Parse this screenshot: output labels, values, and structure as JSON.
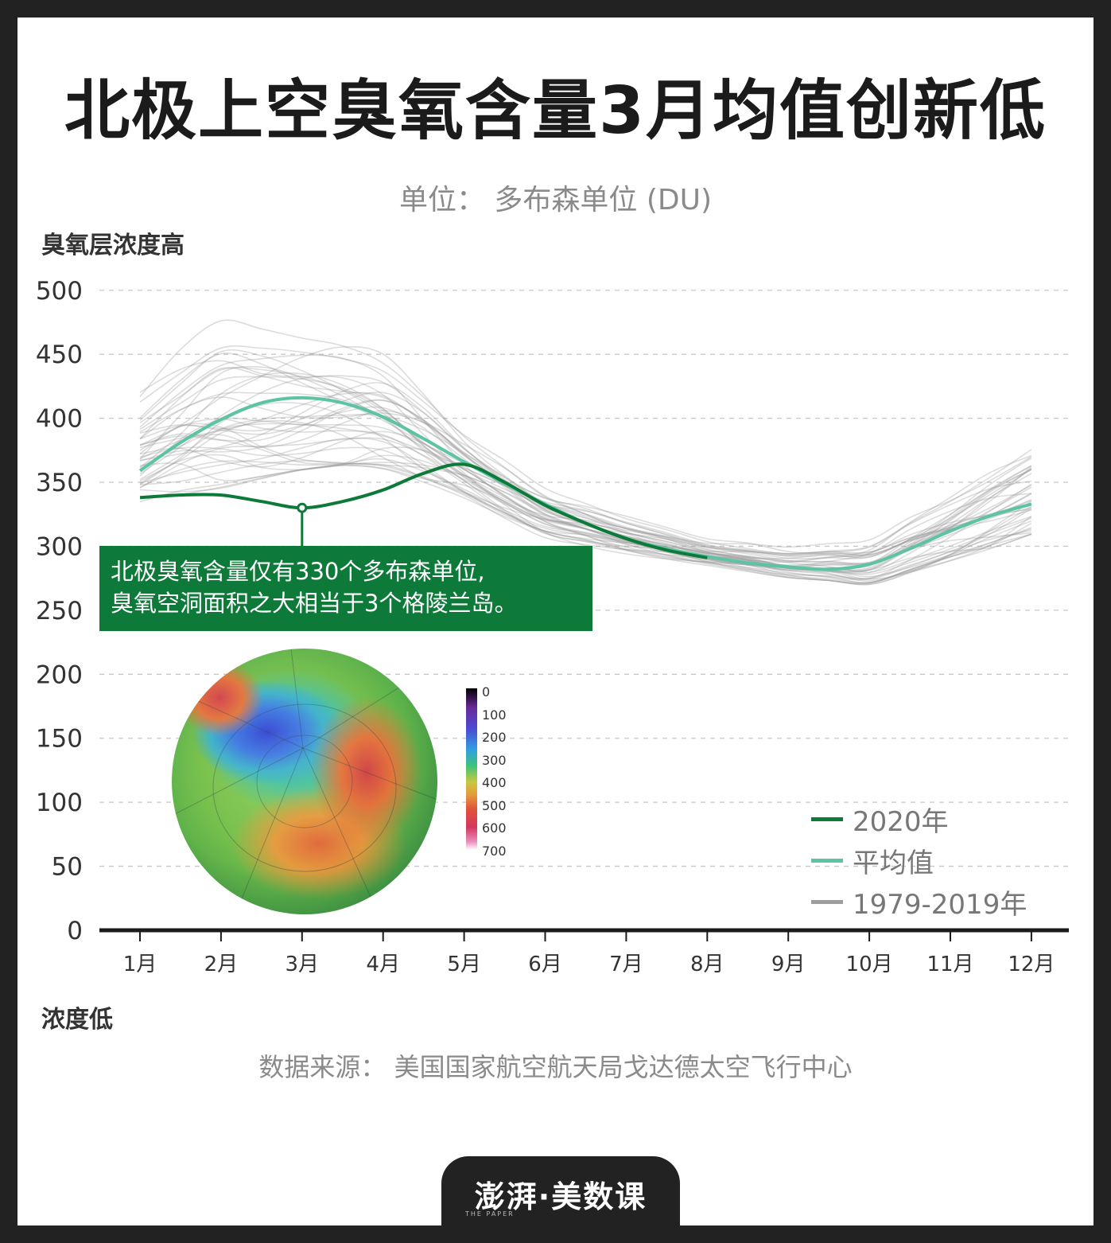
{
  "title": "北极上空臭氧含量3月均值创新低",
  "subtitle": "单位： 多布森单位 (DU)",
  "y_label_high": "臭氧层浓度高",
  "y_label_low": "浓度低",
  "source": "数据来源： 美国国家航空航天局戈达德太空飞行中心",
  "annotation": {
    "line1": "北极臭氧含量仅有330个多布森单位,",
    "line2": "臭氧空洞面积之大相当于3个格陵兰岛。"
  },
  "legend": [
    {
      "label": "2020年",
      "color": "#0e7a3a"
    },
    {
      "label": "平均值",
      "color": "#5cc4a4"
    },
    {
      "label": "1979-2019年",
      "color": "#9e9e9e"
    }
  ],
  "colorbar_ticks": [
    "0",
    "100",
    "200",
    "300",
    "400",
    "500",
    "600",
    "700"
  ],
  "logo": {
    "text": "澎湃·美数课",
    "sub": "THE PAPER"
  },
  "chart_data": {
    "type": "line",
    "ylim": [
      0,
      500
    ],
    "yticks": [
      0,
      50,
      100,
      150,
      200,
      250,
      300,
      350,
      400,
      450,
      500
    ],
    "xticks": [
      "1月",
      "2月",
      "3月",
      "4月",
      "5月",
      "6月",
      "7月",
      "8月",
      "9月",
      "10月",
      "11月",
      "12月"
    ],
    "grid": true,
    "series": [
      {
        "name": "平均值",
        "color": "#5cc4a4",
        "points": [
          [
            1,
            359
          ],
          [
            1.5,
            381
          ],
          [
            2,
            399
          ],
          [
            2.5,
            412
          ],
          [
            3,
            416
          ],
          [
            3.5,
            412
          ],
          [
            4,
            401
          ],
          [
            4.5,
            384
          ],
          [
            5,
            366
          ],
          [
            5.5,
            349
          ],
          [
            6,
            333
          ],
          [
            6.5,
            318
          ],
          [
            7,
            306
          ],
          [
            7.5,
            298
          ],
          [
            8,
            292
          ],
          [
            8.5,
            287
          ],
          [
            9,
            284
          ],
          [
            9.5,
            282
          ],
          [
            10,
            286
          ],
          [
            10.5,
            298
          ],
          [
            11,
            312
          ],
          [
            11.5,
            324
          ],
          [
            12,
            333
          ]
        ]
      },
      {
        "name": "2020年",
        "color": "#0e7a3a",
        "points": [
          [
            1,
            338
          ],
          [
            1.5,
            340
          ],
          [
            2,
            340
          ],
          [
            2.5,
            335
          ],
          [
            3,
            330
          ],
          [
            3.5,
            335
          ],
          [
            4,
            344
          ],
          [
            4.5,
            357
          ],
          [
            5,
            364
          ],
          [
            5.5,
            350
          ],
          [
            6,
            332
          ],
          [
            6.5,
            318
          ],
          [
            7,
            306
          ],
          [
            7.5,
            297
          ],
          [
            8,
            291
          ]
        ]
      },
      {
        "name": "1979-2019年",
        "color": "#9e9e9e",
        "members": 41,
        "envelope_max": [
          [
            1,
            422
          ],
          [
            1.5,
            455
          ],
          [
            2,
            478
          ],
          [
            2.5,
            472
          ],
          [
            3,
            465
          ],
          [
            3.5,
            460
          ],
          [
            4,
            452
          ],
          [
            4.5,
            425
          ],
          [
            5,
            392
          ],
          [
            5.5,
            368
          ],
          [
            6,
            346
          ],
          [
            7,
            322
          ],
          [
            8,
            305
          ],
          [
            9,
            300
          ],
          [
            10,
            305
          ],
          [
            11,
            340
          ],
          [
            12,
            382
          ]
        ],
        "envelope_min": [
          [
            1,
            333
          ],
          [
            1.5,
            340
          ],
          [
            2,
            345
          ],
          [
            2.5,
            352
          ],
          [
            3,
            358
          ],
          [
            3.5,
            362
          ],
          [
            4,
            360
          ],
          [
            4.5,
            350
          ],
          [
            5,
            338
          ],
          [
            5.5,
            322
          ],
          [
            6,
            308
          ],
          [
            7,
            295
          ],
          [
            8,
            285
          ],
          [
            9,
            275
          ],
          [
            10,
            270
          ],
          [
            11,
            290
          ],
          [
            12,
            308
          ]
        ]
      }
    ],
    "marker": {
      "x": 3,
      "y": 330
    }
  }
}
